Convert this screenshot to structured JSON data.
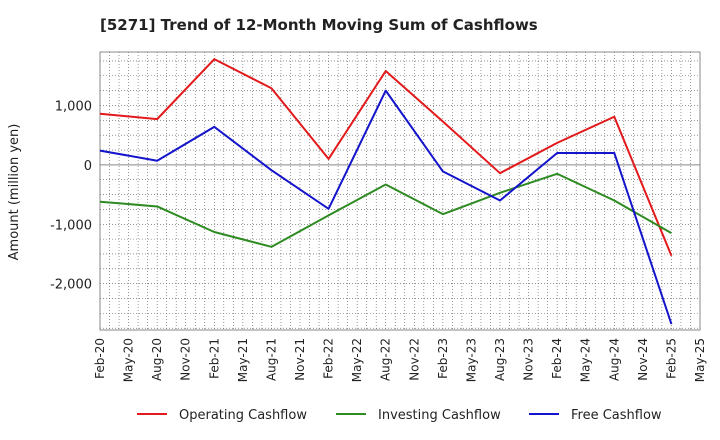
{
  "chart_data": {
    "type": "line",
    "title": "[5271]  Trend of 12-Month Moving Sum of Cashflows",
    "ylabel": "Amount (million yen)",
    "xlabel": "",
    "x_ticks": [
      "Feb-20",
      "May-20",
      "Aug-20",
      "Nov-20",
      "Feb-21",
      "May-21",
      "Aug-21",
      "Nov-21",
      "Feb-22",
      "May-22",
      "Aug-22",
      "Nov-22",
      "Feb-23",
      "May-23",
      "Aug-23",
      "Nov-23",
      "Feb-24",
      "May-24",
      "Aug-24",
      "Nov-24",
      "Feb-25",
      "May-25"
    ],
    "y_ticks": [
      1000,
      0,
      -1000,
      -2000
    ],
    "y_tick_labels": [
      "1,000",
      "0",
      "-1,000",
      "-2,000"
    ],
    "ylim": [
      -2780,
      1900
    ],
    "grid": true,
    "legend_position": "bottom",
    "x": [
      "Feb-20",
      "Aug-20",
      "Feb-21",
      "Aug-21",
      "Feb-22",
      "Aug-22",
      "Feb-23",
      "Aug-23",
      "Feb-24",
      "Aug-24",
      "Feb-25"
    ],
    "series": [
      {
        "name": "Operating Cashflow",
        "color": "#e31a1c",
        "values": [
          860,
          770,
          1780,
          1290,
          100,
          1580,
          730,
          -140,
          370,
          810,
          -1530
        ]
      },
      {
        "name": "Investing Cashflow",
        "color": "#2e8b22",
        "values": [
          -620,
          -700,
          -1130,
          -1380,
          -850,
          -330,
          -830,
          -470,
          -150,
          -600,
          -1150
        ]
      },
      {
        "name": "Free Cashflow",
        "color": "#1414cc",
        "values": [
          240,
          70,
          640,
          -90,
          -740,
          1250,
          -110,
          -600,
          200,
          200,
          -2680
        ]
      }
    ]
  }
}
